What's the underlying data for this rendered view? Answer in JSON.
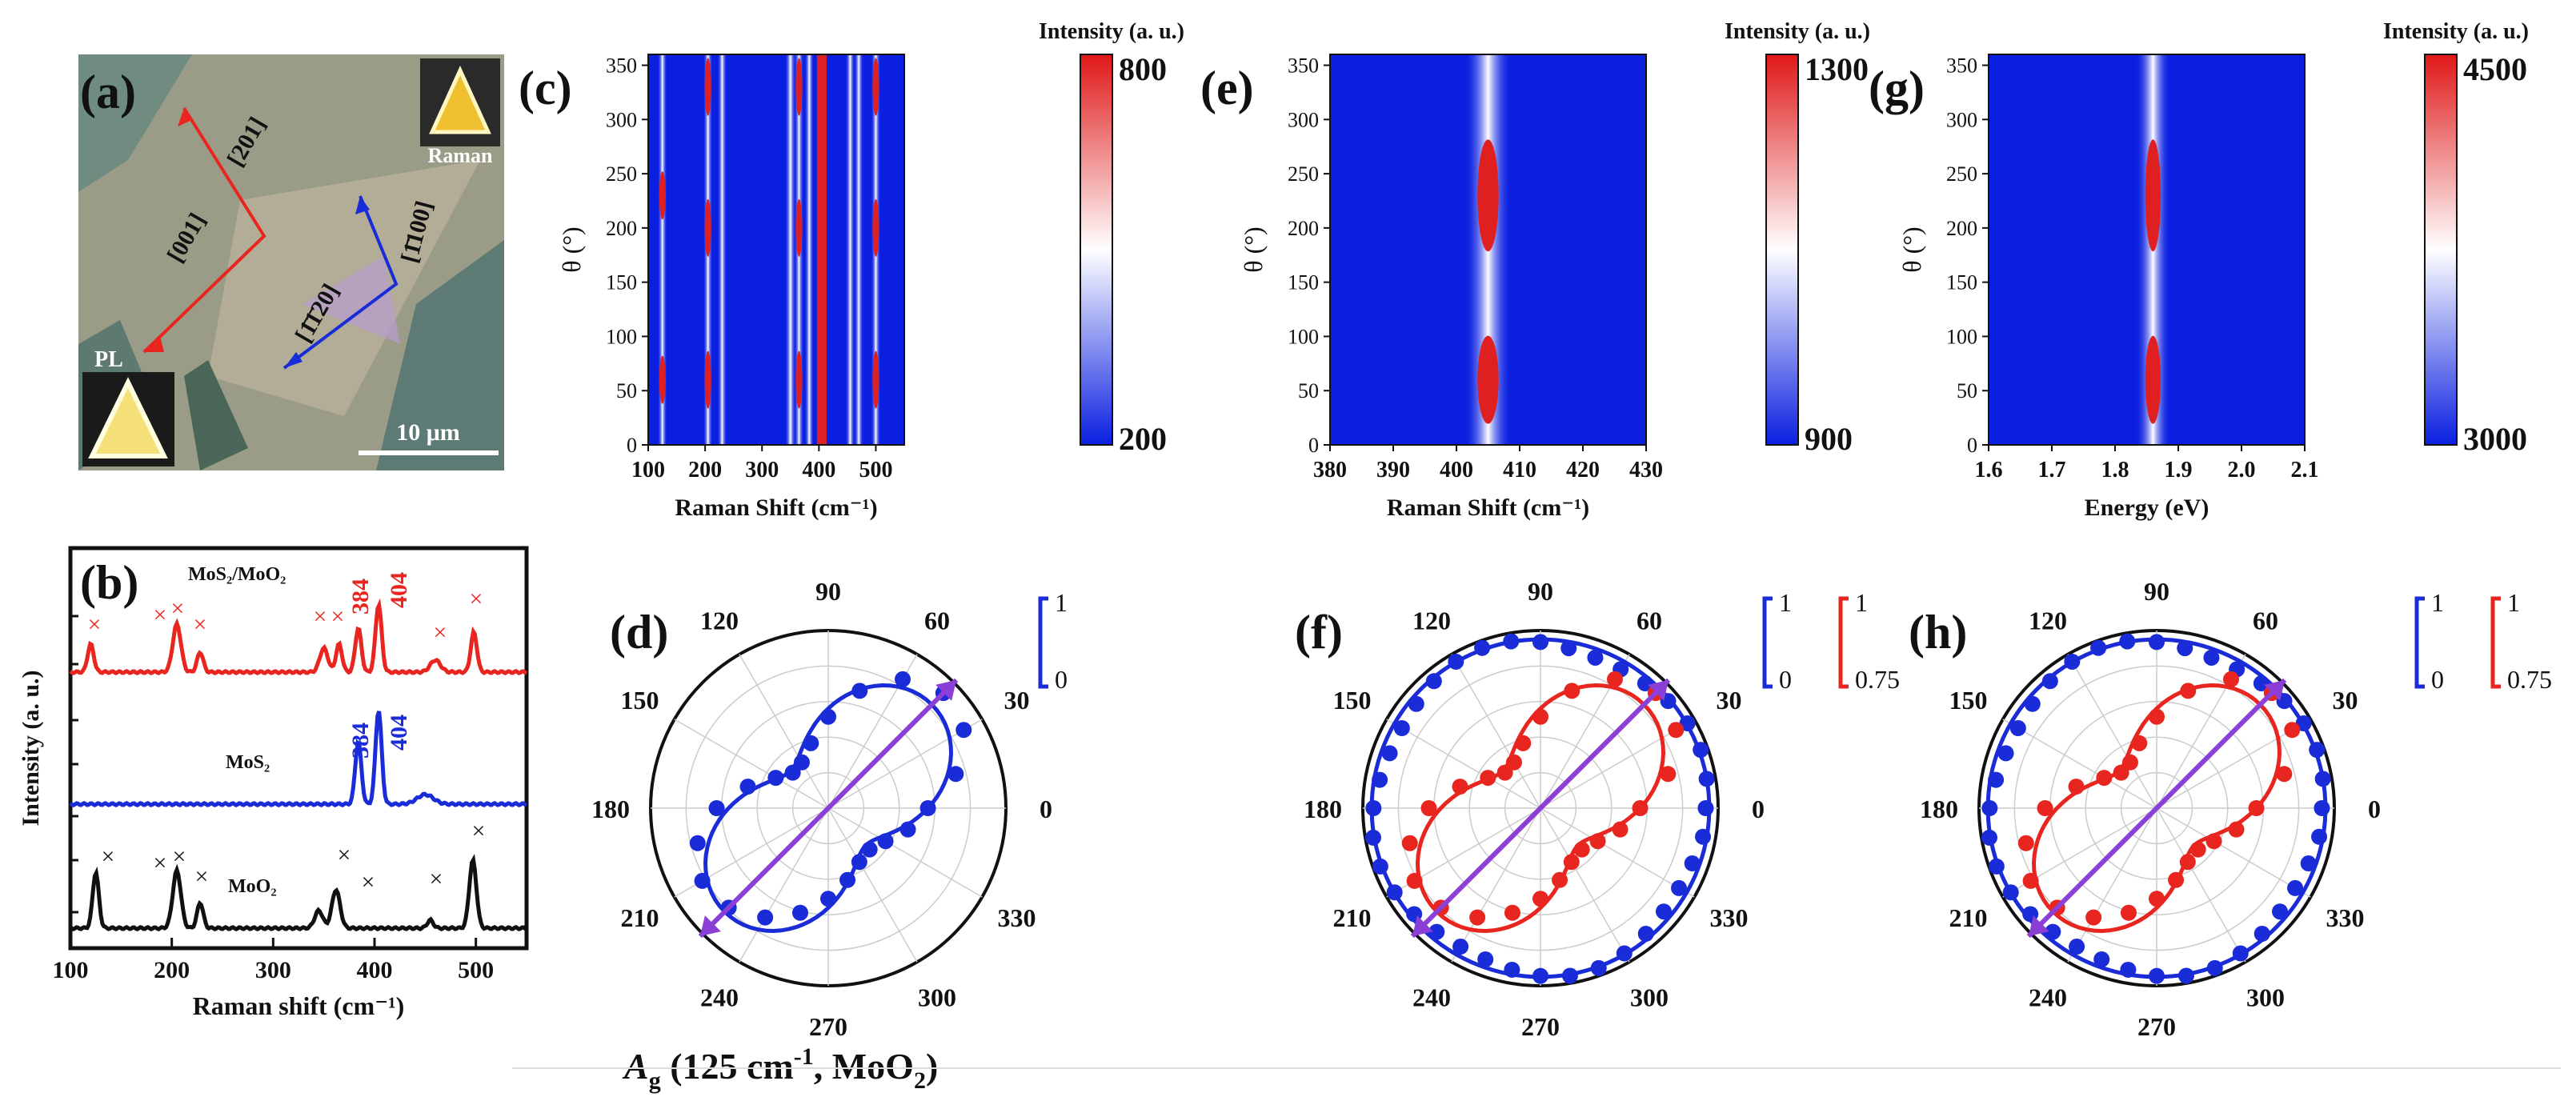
{
  "figure": {
    "panel_labels": {
      "a": "(a)",
      "b": "(b)",
      "c": "(c)",
      "d": "(d)",
      "e": "(e)",
      "f": "(f)",
      "g": "(g)",
      "h": "(h)"
    },
    "colors": {
      "red": "#e8251f",
      "blue": "#1a2bd8",
      "black": "#111111",
      "purple": "#8b3fd6",
      "bg_blue": "#0a1fe0"
    }
  },
  "panel_a": {
    "dir_201": "[201]",
    "dir_001": "[001]",
    "dir_1100": "[1̄100]",
    "dir_1120": "[1̄1̄20]",
    "raman_label": "Raman",
    "pl_label": "PL",
    "scale_bar": "10 μm"
  },
  "panel_b": {
    "ylabel": "Intensity (a. u.)",
    "xlabel": "Raman shift (cm⁻¹)",
    "xticks": [
      "100",
      "200",
      "300",
      "400",
      "500"
    ],
    "traces": [
      {
        "name": "MoS₂/MoO₂",
        "color": "red",
        "peak_labels": [
          "384",
          "404"
        ]
      },
      {
        "name": "MoS₂",
        "color": "blue",
        "peak_labels": [
          "384",
          "404"
        ]
      },
      {
        "name": "MoO₂",
        "color": "black",
        "peak_labels": []
      }
    ],
    "marker": "×"
  },
  "chart_data": [
    {
      "panel": "c",
      "type": "heatmap",
      "title": "Intensity (a. u.)",
      "xlabel": "Raman Shift (cm⁻¹)",
      "ylabel": "θ (°)",
      "xlim": [
        100,
        550
      ],
      "ylim": [
        0,
        360
      ],
      "xticks": [
        100,
        200,
        300,
        400,
        500
      ],
      "yticks": [
        0,
        50,
        100,
        150,
        200,
        250,
        300,
        350
      ],
      "colorbar": {
        "min": 200,
        "max": 800,
        "labels": [
          "800",
          "200"
        ]
      },
      "bands_cm1": [
        125,
        205,
        230,
        350,
        365,
        383,
        405,
        455,
        470,
        500
      ]
    },
    {
      "panel": "e",
      "type": "heatmap",
      "title": "Intensity (a. u.)",
      "xlabel": "Raman Shift (cm⁻¹)",
      "ylabel": "θ (°)",
      "xlim": [
        380,
        430
      ],
      "ylim": [
        0,
        360
      ],
      "xticks": [
        380,
        390,
        400,
        410,
        420,
        430
      ],
      "yticks": [
        0,
        50,
        100,
        150,
        200,
        250,
        300,
        350
      ],
      "colorbar": {
        "min": 900,
        "max": 1300,
        "labels": [
          "1300",
          "900"
        ]
      },
      "band_center": 405
    },
    {
      "panel": "g",
      "type": "heatmap",
      "title": "Intensity (a. u.)",
      "xlabel": "Energy (eV)",
      "ylabel": "θ (°)",
      "xlim": [
        1.6,
        2.1
      ],
      "ylim": [
        0,
        360
      ],
      "xticks": [
        "1.6",
        "1.7",
        "1.8",
        "1.9",
        "2.0",
        "2.1"
      ],
      "yticks": [
        0,
        50,
        100,
        150,
        200,
        250,
        300,
        350
      ],
      "colorbar": {
        "min": 3000,
        "max": 4500,
        "labels": [
          "4500",
          "3000"
        ]
      },
      "band_center": 1.86
    },
    {
      "panel": "d",
      "type": "scatter",
      "coords": "polar",
      "angle_ticks": [
        "0",
        "30",
        "60",
        "90",
        "120",
        "150",
        "180",
        "210",
        "240",
        "270",
        "300",
        "330"
      ],
      "caption_main": "A",
      "caption_sub": "g",
      "caption_rest": " (125 cm",
      "caption_sup": "-1",
      "caption_end": ", MoO",
      "caption_sub2": "2",
      "caption_close": ")",
      "series": [
        {
          "name": "MoO₂ Ag 125",
          "color": "blue",
          "type": "two-lobe",
          "axis_deg": 45
        }
      ],
      "scale_bars": [
        {
          "color": "blue",
          "top": "1",
          "bottom": "0"
        }
      ]
    },
    {
      "panel": "f",
      "type": "scatter",
      "coords": "polar",
      "angle_ticks": [
        "0",
        "30",
        "60",
        "90",
        "120",
        "150",
        "180",
        "210",
        "240",
        "270",
        "300",
        "330"
      ],
      "series": [
        {
          "name": "blue",
          "color": "blue",
          "type": "isotropic"
        },
        {
          "name": "red",
          "color": "red",
          "type": "two-lobe",
          "axis_deg": 45
        }
      ],
      "scale_bars": [
        {
          "color": "blue",
          "top": "1",
          "bottom": "0"
        },
        {
          "color": "red",
          "top": "1",
          "bottom": "0.75"
        }
      ]
    },
    {
      "panel": "h",
      "type": "scatter",
      "coords": "polar",
      "angle_ticks": [
        "0",
        "30",
        "60",
        "90",
        "120",
        "150",
        "180",
        "210",
        "240",
        "270",
        "300",
        "330"
      ],
      "series": [
        {
          "name": "blue",
          "color": "blue",
          "type": "isotropic"
        },
        {
          "name": "red",
          "color": "red",
          "type": "two-lobe",
          "axis_deg": 45
        }
      ],
      "scale_bars": [
        {
          "color": "blue",
          "top": "1",
          "bottom": "0"
        },
        {
          "color": "red",
          "top": "1",
          "bottom": "0.75"
        }
      ]
    }
  ]
}
